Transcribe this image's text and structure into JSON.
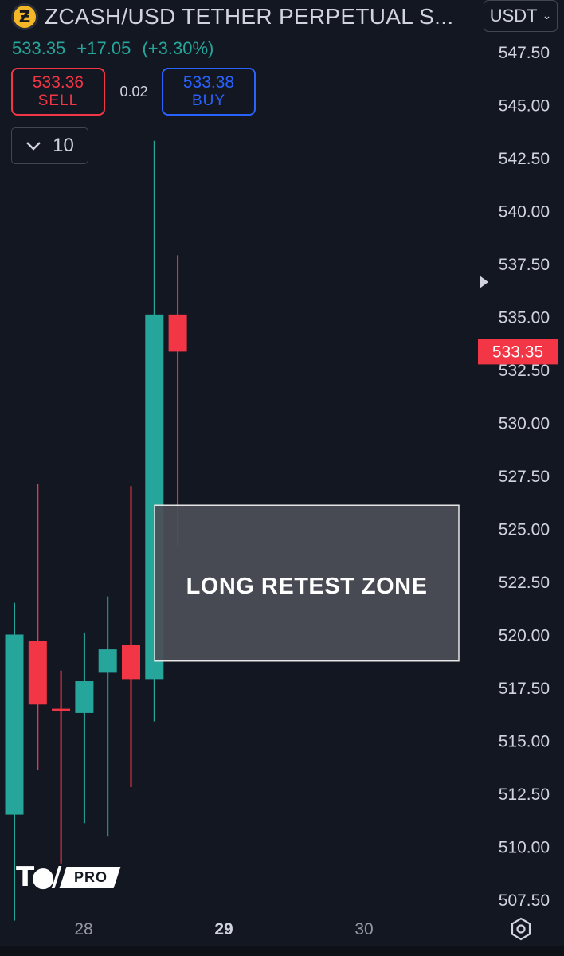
{
  "header": {
    "coin_icon": "Ƶ",
    "symbol": "ZCASH/USD TETHER PERPETUAL S...",
    "currency": "USDT",
    "last_price": "533.35",
    "change": "+17.05",
    "change_pct": "(+3.30%)"
  },
  "trade": {
    "sell_price": "533.36",
    "sell_label": "SELL",
    "spread": "0.02",
    "buy_price": "533.38",
    "buy_label": "BUY",
    "quantity": "10"
  },
  "annotation": {
    "zone_label": "LONG RETEST ZONE",
    "zone_low": 518.75,
    "zone_high": 526.1
  },
  "logo": {
    "pro_label": "PRO"
  },
  "colors": {
    "background": "#131722",
    "up": "#26a69a",
    "down": "#f23645",
    "buy": "#2962ff",
    "text": "#d1d4dc"
  },
  "icons": {
    "currency_dropdown": "chevron-down-icon",
    "quantity_dropdown": "chevron-down-icon",
    "settings": "gear-icon",
    "scroll": "triangle-right-icon"
  },
  "chart_data": {
    "type": "candlestick",
    "y_axis": {
      "min": 506.5,
      "max": 548.5,
      "ticks": [
        "547.50",
        "545.00",
        "542.50",
        "540.00",
        "537.50",
        "535.00",
        "532.50",
        "530.00",
        "527.50",
        "525.00",
        "522.50",
        "520.00",
        "517.50",
        "515.00",
        "512.50",
        "510.00",
        "507.50"
      ],
      "position": "right"
    },
    "x_axis": {
      "tick_labels": [
        "28",
        "29",
        "30"
      ],
      "bold_tick": "29"
    },
    "current_price_label": "533.35",
    "candles": [
      {
        "open": 511.5,
        "close": 520.0,
        "high": 521.5,
        "low": 506.5
      },
      {
        "open": 519.7,
        "close": 516.7,
        "high": 527.1,
        "low": 513.6
      },
      {
        "open": 516.5,
        "close": 516.4,
        "high": 518.3,
        "low": 509.2
      },
      {
        "open": 516.3,
        "close": 517.8,
        "high": 520.1,
        "low": 511.1
      },
      {
        "open": 518.2,
        "close": 519.3,
        "high": 521.8,
        "low": 510.5
      },
      {
        "open": 519.5,
        "close": 517.9,
        "high": 527.0,
        "low": 512.8
      },
      {
        "open": 517.9,
        "close": 535.1,
        "high": 543.3,
        "low": 515.9
      },
      {
        "open": 535.1,
        "close": 533.35,
        "high": 537.9,
        "low": 524.2
      }
    ]
  }
}
